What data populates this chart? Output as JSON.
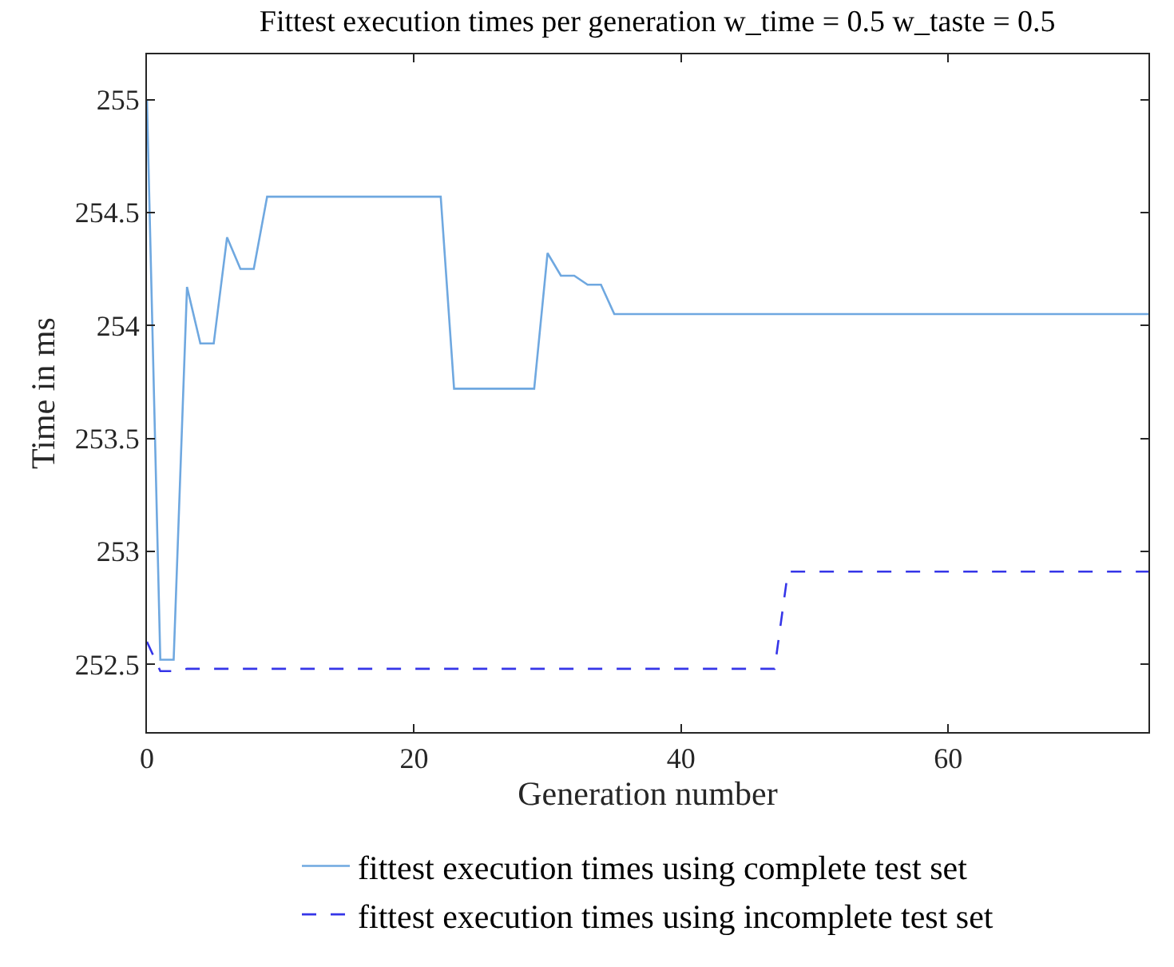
{
  "chart_data": {
    "type": "line",
    "title": "Fittest execution times per generation w_time = 0.5 w_taste = 0.5",
    "xlabel": "Generation number",
    "ylabel": "Time in ms",
    "xlim": [
      0,
      75
    ],
    "xticks": [
      0,
      20,
      40,
      60
    ],
    "ylim": [
      252.2,
      255.2
    ],
    "yticks": [
      252.5,
      253,
      253.5,
      254,
      254.5,
      255
    ],
    "legend": "bottom",
    "series": [
      {
        "name": "fittest execution times using complete test set",
        "color": "#6fa8e0",
        "line_style": "solid",
        "x": [
          0,
          1,
          2,
          3,
          4,
          5,
          6,
          7,
          8,
          9,
          22,
          23,
          29,
          30,
          31,
          32,
          33,
          34,
          35,
          75
        ],
        "values": [
          255,
          252.52,
          252.52,
          254.17,
          253.92,
          253.92,
          254.39,
          254.25,
          254.25,
          254.57,
          254.57,
          253.72,
          253.72,
          254.32,
          254.22,
          254.22,
          254.18,
          254.18,
          254.05,
          254.05
        ]
      },
      {
        "name": "fittest execution times using incomplete test set",
        "color": "#3535e8",
        "line_style": "dashed",
        "x": [
          0,
          1,
          2,
          3,
          47,
          48,
          75
        ],
        "values": [
          252.6,
          252.47,
          252.47,
          252.48,
          252.48,
          252.91,
          252.91
        ]
      }
    ]
  }
}
